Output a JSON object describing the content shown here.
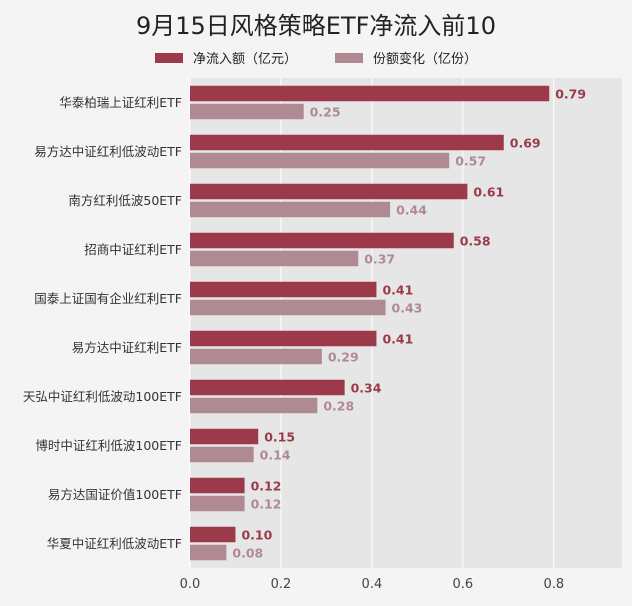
{
  "colors": {
    "inflow": "#9c3a4b",
    "share": "#b08a93",
    "plot_bg": "#e6e6e6",
    "grid": "#ffffff"
  },
  "chart_data": {
    "type": "bar",
    "orientation": "horizontal",
    "title": "9月15日风格策略ETF净流入前10",
    "categories": [
      "华泰柏瑞上证红利ETF",
      "易方达中证红利低波动ETF",
      "南方红利低波50ETF",
      "招商中证红利ETF",
      "国泰上证国有企业红利ETF",
      "易方达中证红利ETF",
      "天弘中证红利低波动100ETF",
      "博时中证红利低波100ETF",
      "易方达国证价值100ETF",
      "华夏中证红利低波动ETF"
    ],
    "series": [
      {
        "name": "净流入额（亿元）",
        "values": [
          0.79,
          0.69,
          0.61,
          0.58,
          0.41,
          0.41,
          0.34,
          0.15,
          0.12,
          0.1
        ],
        "labels": [
          "0.79",
          "0.69",
          "0.61",
          "0.58",
          "0.41",
          "0.41",
          "0.34",
          "0.15",
          "0.12",
          "0.10"
        ]
      },
      {
        "name": "份额变化（亿份）",
        "values": [
          0.25,
          0.57,
          0.44,
          0.37,
          0.43,
          0.29,
          0.28,
          0.14,
          0.12,
          0.08
        ],
        "labels": [
          "0.25",
          "0.57",
          "0.44",
          "0.37",
          "0.43",
          "0.29",
          "0.28",
          "0.14",
          "0.12",
          "0.08"
        ]
      }
    ],
    "xlim": [
      0,
      0.95
    ],
    "xticks": [
      "0.0",
      "0.2",
      "0.4",
      "0.6",
      "0.8"
    ],
    "grid": true,
    "legend": "top-center"
  }
}
